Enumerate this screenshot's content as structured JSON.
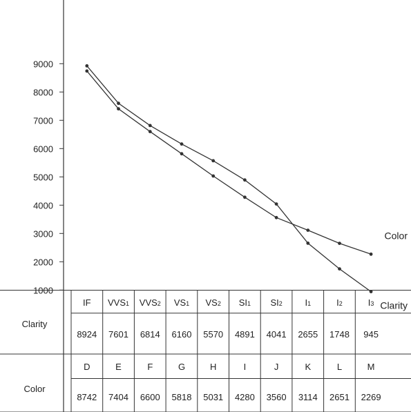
{
  "chart_data": {
    "type": "line",
    "title": "",
    "xlabel": "",
    "ylabel": "",
    "ylim": [
      0,
      10000
    ],
    "yticks": [
      1000,
      2000,
      3000,
      4000,
      5000,
      6000,
      7000,
      8000,
      9000
    ],
    "grid": false,
    "series": [
      {
        "name": "Clarity",
        "categories": [
          "IF",
          "VVS1",
          "VVS2",
          "VS1",
          "VS2",
          "SI1",
          "SI2",
          "I1",
          "I2",
          "I3"
        ],
        "values": [
          8924,
          7601,
          6814,
          6160,
          5570,
          4891,
          4041,
          2655,
          1748,
          945
        ]
      },
      {
        "name": "Color",
        "categories": [
          "D",
          "E",
          "F",
          "G",
          "H",
          "I",
          "J",
          "K",
          "L",
          "M"
        ],
        "values": [
          8742,
          7404,
          6600,
          5818,
          5031,
          4280,
          3560,
          3114,
          2651,
          2269
        ]
      }
    ]
  },
  "table": {
    "rows": [
      {
        "label": "Clarity",
        "headers": [
          {
            "base": "IF",
            "sub": ""
          },
          {
            "base": "VVS",
            "sub": "1"
          },
          {
            "base": "VVS",
            "sub": "2"
          },
          {
            "base": "VS",
            "sub": "1"
          },
          {
            "base": "VS",
            "sub": "2"
          },
          {
            "base": "SI",
            "sub": "1"
          },
          {
            "base": "SI",
            "sub": "2"
          },
          {
            "base": "I",
            "sub": "1"
          },
          {
            "base": "I",
            "sub": "2"
          },
          {
            "base": "I",
            "sub": "3"
          }
        ],
        "values": [
          "8924",
          "7601",
          "6814",
          "6160",
          "5570",
          "4891",
          "4041",
          "2655",
          "1748",
          "945"
        ]
      },
      {
        "label": "Color",
        "headers": [
          {
            "base": "D",
            "sub": ""
          },
          {
            "base": "E",
            "sub": ""
          },
          {
            "base": "F",
            "sub": ""
          },
          {
            "base": "G",
            "sub": ""
          },
          {
            "base": "H",
            "sub": ""
          },
          {
            "base": "I",
            "sub": ""
          },
          {
            "base": "J",
            "sub": ""
          },
          {
            "base": "K",
            "sub": ""
          },
          {
            "base": "L",
            "sub": ""
          },
          {
            "base": "M",
            "sub": ""
          }
        ],
        "values": [
          "8742",
          "7404",
          "6600",
          "5818",
          "5031",
          "4280",
          "3560",
          "3114",
          "2651",
          "2269"
        ]
      }
    ]
  },
  "colors": {
    "line": "#333333",
    "text": "#222222"
  }
}
